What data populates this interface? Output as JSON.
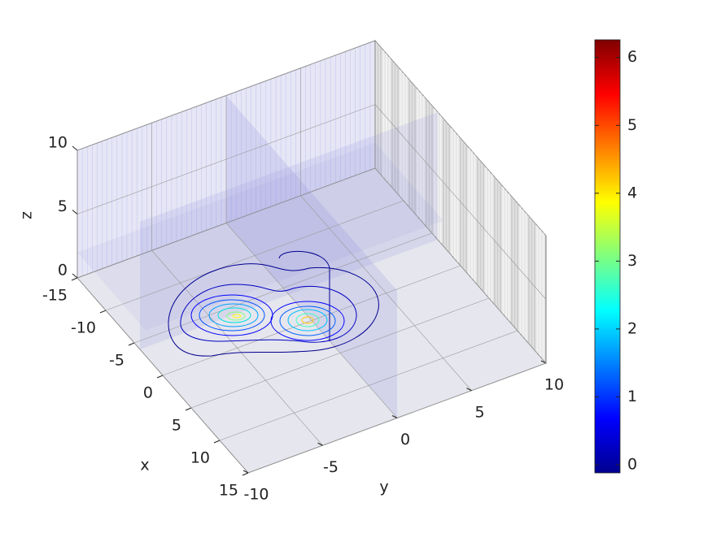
{
  "chart_data": {
    "type": "contour3d",
    "xlabel": "x",
    "ylabel": "y",
    "zlabel": "z",
    "xlim": [
      -15,
      15
    ],
    "xticks": [
      -15,
      -10,
      -5,
      0,
      5,
      10,
      15
    ],
    "ylim": [
      -10,
      10
    ],
    "yticks": [
      -10,
      -5,
      0,
      5,
      10
    ],
    "zlim": [
      0,
      10
    ],
    "zticks": [
      0,
      5,
      10
    ],
    "colorbar": {
      "clim": [
        -0.12,
        6.26
      ],
      "ticks": [
        0,
        1,
        2,
        3,
        4,
        5,
        6
      ],
      "colormap": "jet"
    },
    "grid": true
  }
}
